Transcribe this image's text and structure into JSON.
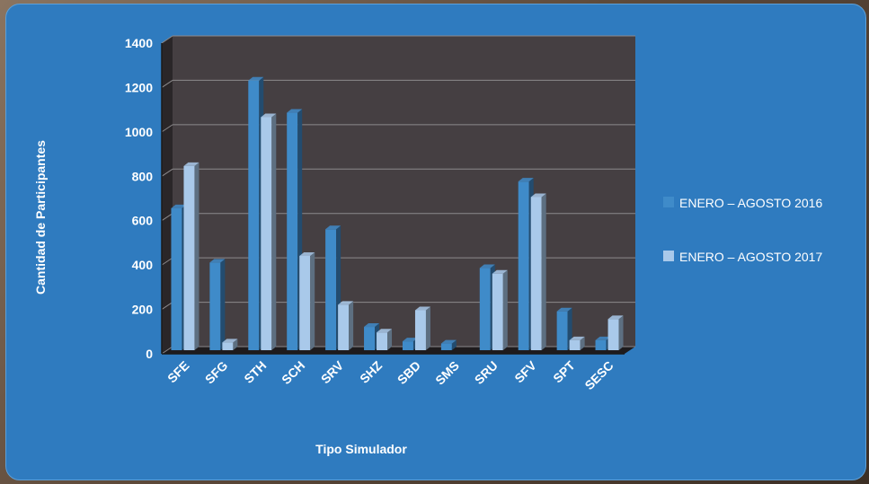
{
  "chart_data": {
    "type": "bar",
    "title": "",
    "xlabel": "Tipo Simulador",
    "ylabel": "Cantidad de Participantes",
    "ylim": [
      0,
      1400
    ],
    "yticks": [
      0,
      200,
      400,
      600,
      800,
      1000,
      1200,
      1400
    ],
    "categories": [
      "SFE",
      "SFG",
      "STH",
      "SCH",
      "SRV",
      "SHZ",
      "SBD",
      "SMS",
      "SRU",
      "SFV",
      "SPT",
      "SESC"
    ],
    "series": [
      {
        "name": "ENERO – AGOSTO 2016",
        "color": "#3f8bc9",
        "values": [
          640,
          395,
          1215,
          1070,
          545,
          105,
          40,
          30,
          370,
          760,
          175,
          45
        ]
      },
      {
        "name": "ENERO – AGOSTO 2017",
        "color": "#a9c9ea",
        "values": [
          830,
          35,
          1050,
          425,
          205,
          80,
          180,
          0,
          345,
          690,
          45,
          140
        ]
      }
    ],
    "legend_position": "right",
    "plot_background": "#453f42",
    "grid": true
  }
}
